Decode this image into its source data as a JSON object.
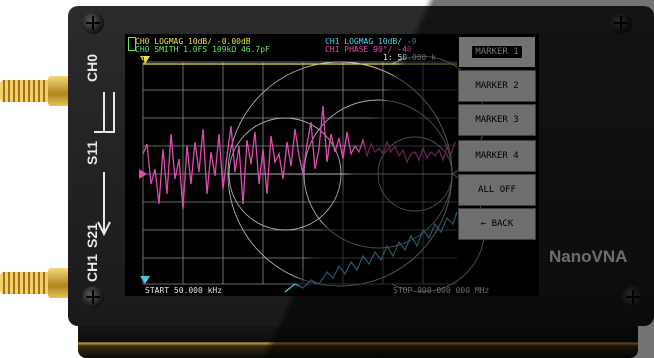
{
  "device": {
    "brand": "NanoVNA",
    "port_ch0": "CH0",
    "port_ch1": "CH1",
    "port_s11": "S11",
    "port_s21": "S21"
  },
  "screen": {
    "trace0_label": "CH0 LOGMAG 10dB/ -0.00dB",
    "trace1_label": "CH0 SMITH 1.0FS 109kΩ 46.7pF",
    "trace2_label": "CH1 LOGMAG 10dB/ -9",
    "trace3_label": "CH1 PHASE 90°/ -40",
    "marker_readout": "1: 50.000 k",
    "start_label": "START 50.000 kHz",
    "stop_label": "STOP 900.000 000 MHz",
    "ref_marker": "1"
  },
  "menu": {
    "items": [
      {
        "label": "MARKER 1",
        "active": true
      },
      {
        "label": "MARKER 2",
        "active": false
      },
      {
        "label": "MARKER 3",
        "active": false
      },
      {
        "label": "MARKER 4",
        "active": false
      },
      {
        "label": "ALL OFF",
        "active": false
      },
      {
        "label": "← BACK",
        "active": false
      }
    ]
  },
  "colors": {
    "trace_magenta": "#e04ab0",
    "trace_cyan": "#4ac8e8",
    "trace_yellow": "#e8e24a",
    "grid": "#9a9a9a"
  }
}
